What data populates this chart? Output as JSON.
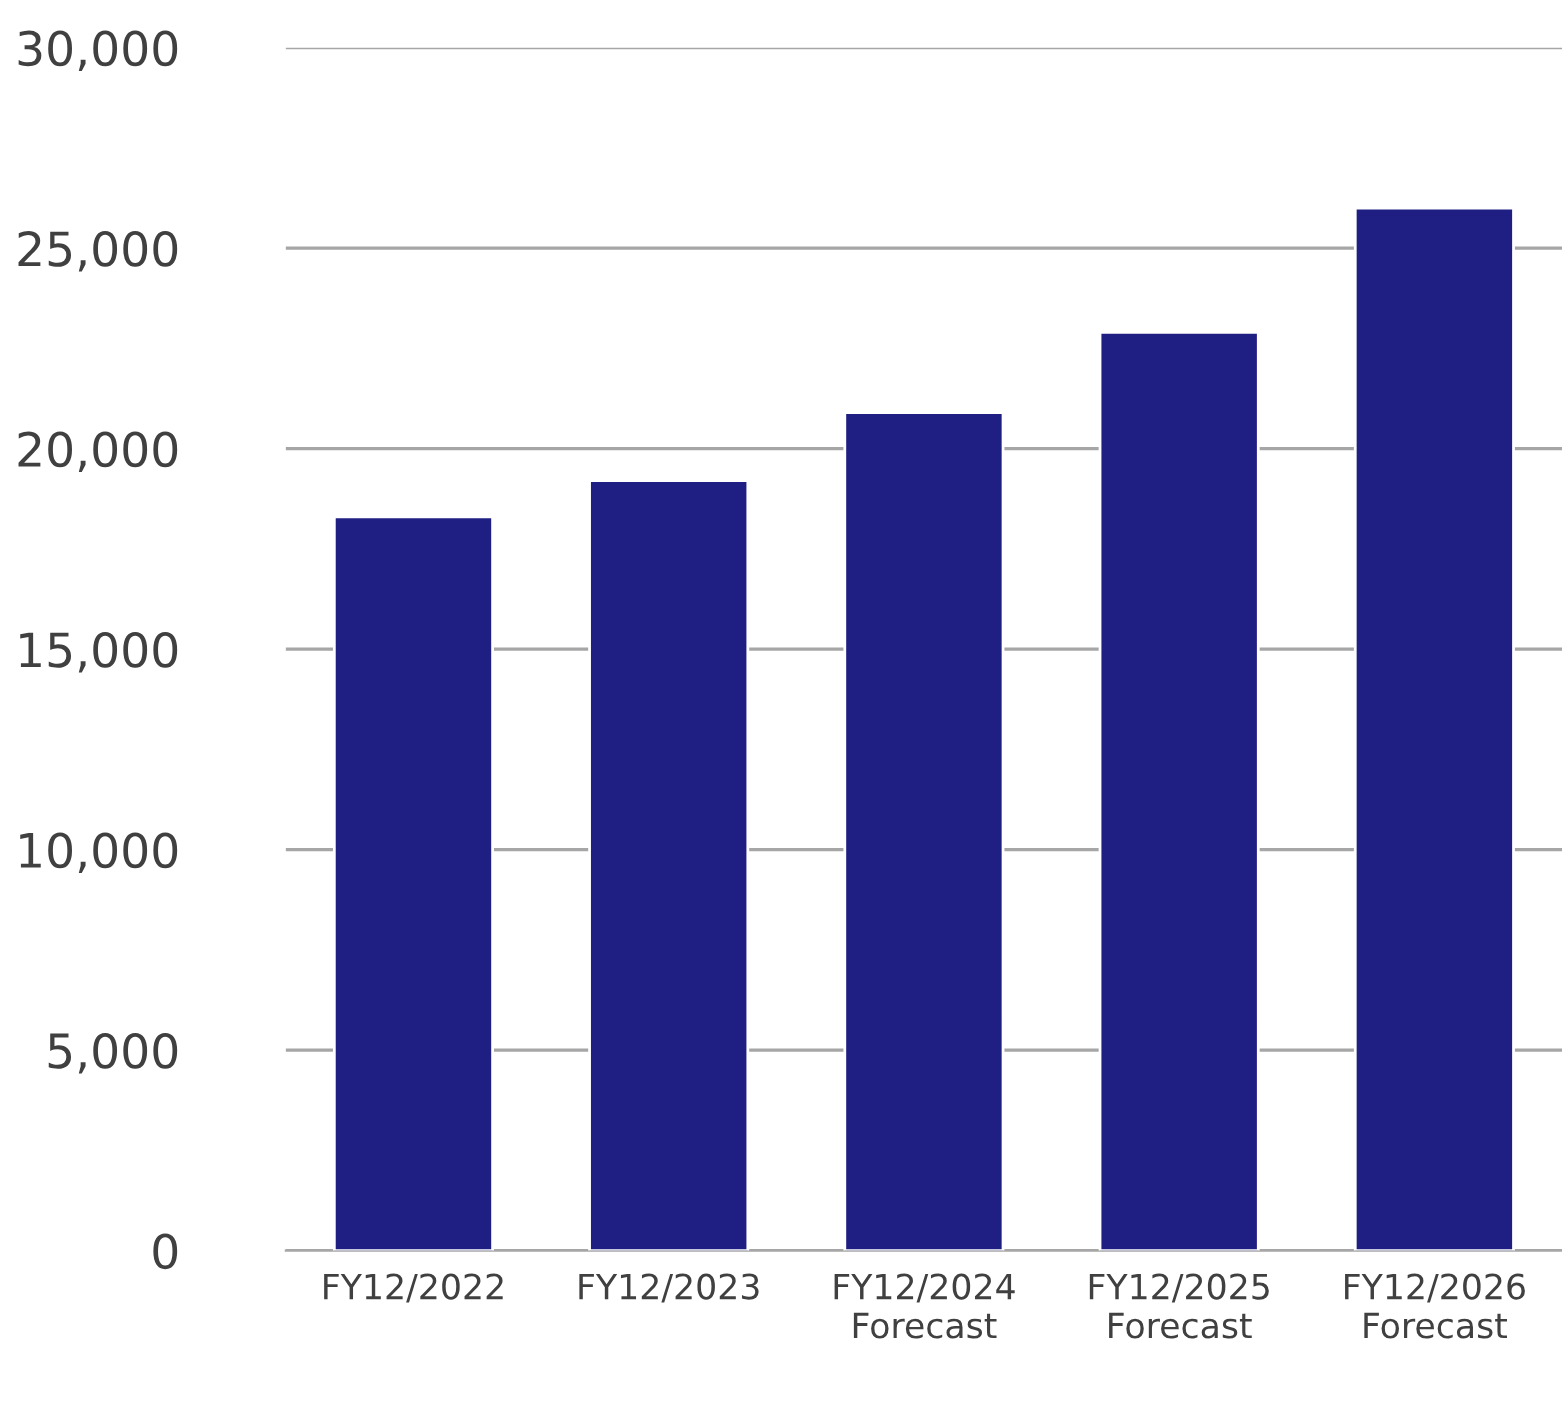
{
  "chart_data": {
    "type": "bar",
    "categories": [
      "FY12/2022",
      "FY12/2023",
      "FY12/2024\nForecast",
      "FY12/2025\nForecast",
      "FY12/2026\nForecast"
    ],
    "values": [
      18300,
      19200,
      20900,
      22900,
      26000
    ],
    "color": "#1f1f83",
    "ylim": [
      0,
      30000
    ],
    "yticks": [
      {
        "value": 0,
        "label": "0"
      },
      {
        "value": 5000,
        "label": "5,000"
      },
      {
        "value": 10000,
        "label": "10,000"
      },
      {
        "value": 15000,
        "label": "15,000"
      },
      {
        "value": 20000,
        "label": "20,000"
      },
      {
        "value": 25000,
        "label": "25,000"
      },
      {
        "value": 30000,
        "label": "30,000"
      }
    ],
    "grid": "y"
  }
}
